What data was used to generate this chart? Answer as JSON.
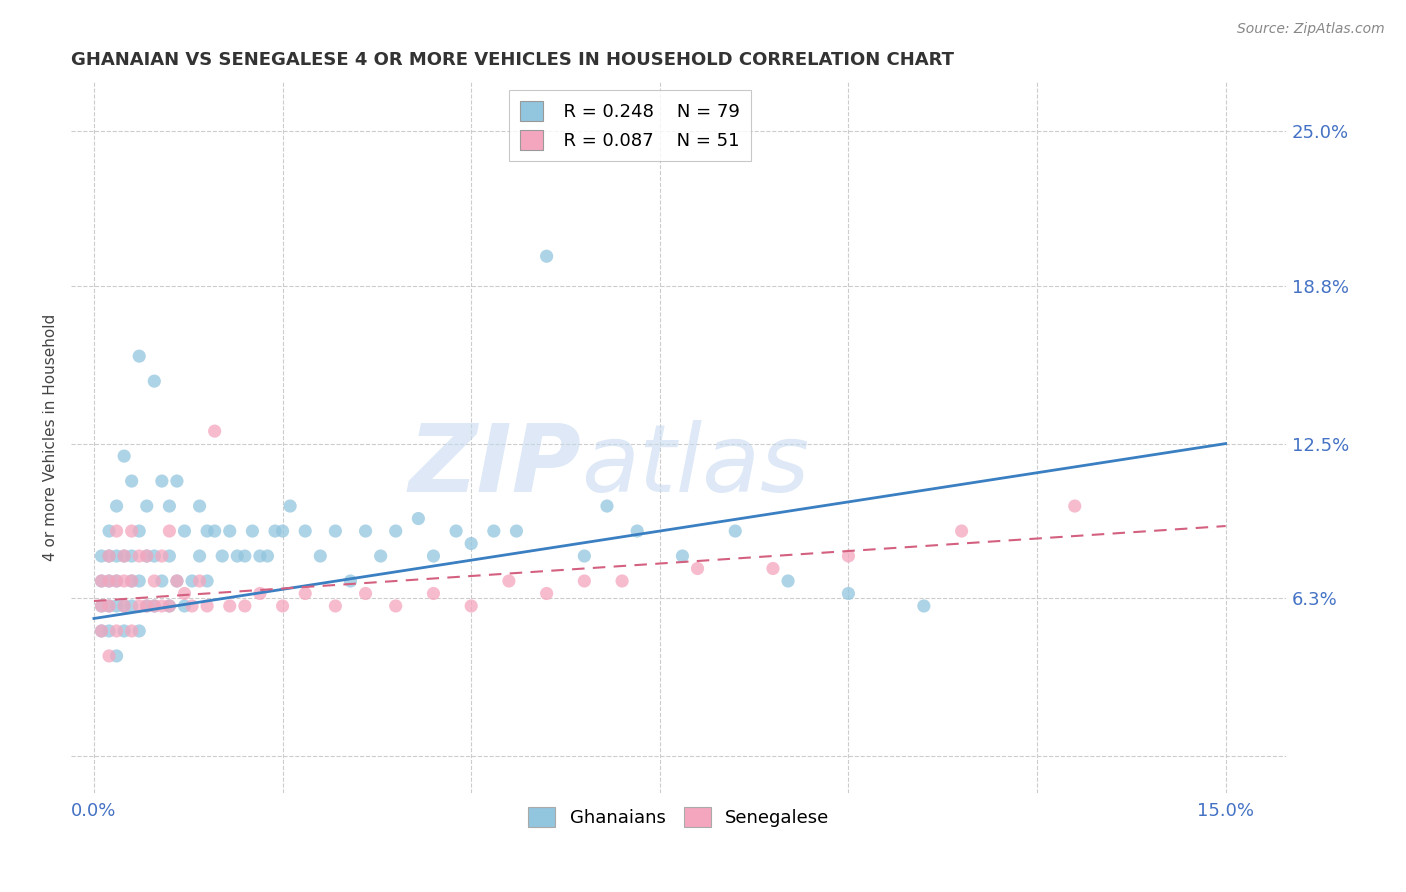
{
  "title": "GHANAIAN VS SENEGALESE 4 OR MORE VEHICLES IN HOUSEHOLD CORRELATION CHART",
  "source": "Source: ZipAtlas.com",
  "ylabel": "4 or more Vehicles in Household",
  "ghanaian_color": "#92c5de",
  "senegalese_color": "#f4a6be",
  "ghanaian_line_color": "#3a7fc1",
  "senegalese_line_color": "#d46080",
  "watermark_zip": "ZIP",
  "watermark_atlas": "atlas",
  "legend_r1": "R = 0.248",
  "legend_n1": "N = 79",
  "legend_r2": "R = 0.087",
  "legend_n2": "N = 51",
  "ghanaian_label": "Ghanaians",
  "senegalese_label": "Senegalese",
  "ghanaian_x": [
    0.001,
    0.001,
    0.001,
    0.001,
    0.002,
    0.002,
    0.002,
    0.002,
    0.002,
    0.003,
    0.003,
    0.003,
    0.003,
    0.003,
    0.004,
    0.004,
    0.004,
    0.004,
    0.005,
    0.005,
    0.005,
    0.005,
    0.006,
    0.006,
    0.006,
    0.006,
    0.007,
    0.007,
    0.007,
    0.008,
    0.008,
    0.008,
    0.009,
    0.009,
    0.01,
    0.01,
    0.01,
    0.011,
    0.011,
    0.012,
    0.012,
    0.013,
    0.014,
    0.014,
    0.015,
    0.015,
    0.016,
    0.017,
    0.018,
    0.019,
    0.02,
    0.021,
    0.022,
    0.023,
    0.024,
    0.025,
    0.026,
    0.028,
    0.03,
    0.032,
    0.034,
    0.036,
    0.038,
    0.04,
    0.043,
    0.045,
    0.048,
    0.05,
    0.053,
    0.056,
    0.06,
    0.065,
    0.068,
    0.072,
    0.078,
    0.085,
    0.092,
    0.1,
    0.11
  ],
  "ghanaian_y": [
    0.05,
    0.06,
    0.07,
    0.08,
    0.05,
    0.06,
    0.07,
    0.08,
    0.09,
    0.04,
    0.06,
    0.07,
    0.08,
    0.1,
    0.05,
    0.06,
    0.08,
    0.12,
    0.06,
    0.07,
    0.08,
    0.11,
    0.05,
    0.07,
    0.09,
    0.16,
    0.06,
    0.08,
    0.1,
    0.06,
    0.08,
    0.15,
    0.07,
    0.11,
    0.06,
    0.08,
    0.1,
    0.07,
    0.11,
    0.06,
    0.09,
    0.07,
    0.08,
    0.1,
    0.07,
    0.09,
    0.09,
    0.08,
    0.09,
    0.08,
    0.08,
    0.09,
    0.08,
    0.08,
    0.09,
    0.09,
    0.1,
    0.09,
    0.08,
    0.09,
    0.07,
    0.09,
    0.08,
    0.09,
    0.095,
    0.08,
    0.09,
    0.085,
    0.09,
    0.09,
    0.2,
    0.08,
    0.1,
    0.09,
    0.08,
    0.09,
    0.07,
    0.065,
    0.06
  ],
  "senegalese_x": [
    0.001,
    0.001,
    0.001,
    0.002,
    0.002,
    0.002,
    0.002,
    0.003,
    0.003,
    0.003,
    0.004,
    0.004,
    0.004,
    0.005,
    0.005,
    0.005,
    0.006,
    0.006,
    0.007,
    0.007,
    0.008,
    0.008,
    0.009,
    0.009,
    0.01,
    0.01,
    0.011,
    0.012,
    0.013,
    0.014,
    0.015,
    0.016,
    0.018,
    0.02,
    0.022,
    0.025,
    0.028,
    0.032,
    0.036,
    0.04,
    0.045,
    0.05,
    0.055,
    0.06,
    0.065,
    0.07,
    0.08,
    0.09,
    0.1,
    0.115,
    0.13
  ],
  "senegalese_y": [
    0.05,
    0.06,
    0.07,
    0.04,
    0.06,
    0.07,
    0.08,
    0.05,
    0.07,
    0.09,
    0.06,
    0.07,
    0.08,
    0.05,
    0.07,
    0.09,
    0.06,
    0.08,
    0.06,
    0.08,
    0.06,
    0.07,
    0.06,
    0.08,
    0.06,
    0.09,
    0.07,
    0.065,
    0.06,
    0.07,
    0.06,
    0.13,
    0.06,
    0.06,
    0.065,
    0.06,
    0.065,
    0.06,
    0.065,
    0.06,
    0.065,
    0.06,
    0.07,
    0.065,
    0.07,
    0.07,
    0.075,
    0.075,
    0.08,
    0.09,
    0.1
  ],
  "xlim": [
    -0.003,
    0.158
  ],
  "ylim": [
    -0.015,
    0.27
  ],
  "ytick_vals": [
    0.0,
    0.063,
    0.125,
    0.188,
    0.25
  ],
  "ytick_labels_right": [
    "",
    "6.3%",
    "12.5%",
    "18.8%",
    "25.0%"
  ],
  "xtick_vals": [
    0.0,
    0.025,
    0.05,
    0.075,
    0.1,
    0.125,
    0.15
  ],
  "xtick_labels": [
    "0.0%",
    "",
    "",
    "",
    "",
    "",
    "15.0%"
  ]
}
